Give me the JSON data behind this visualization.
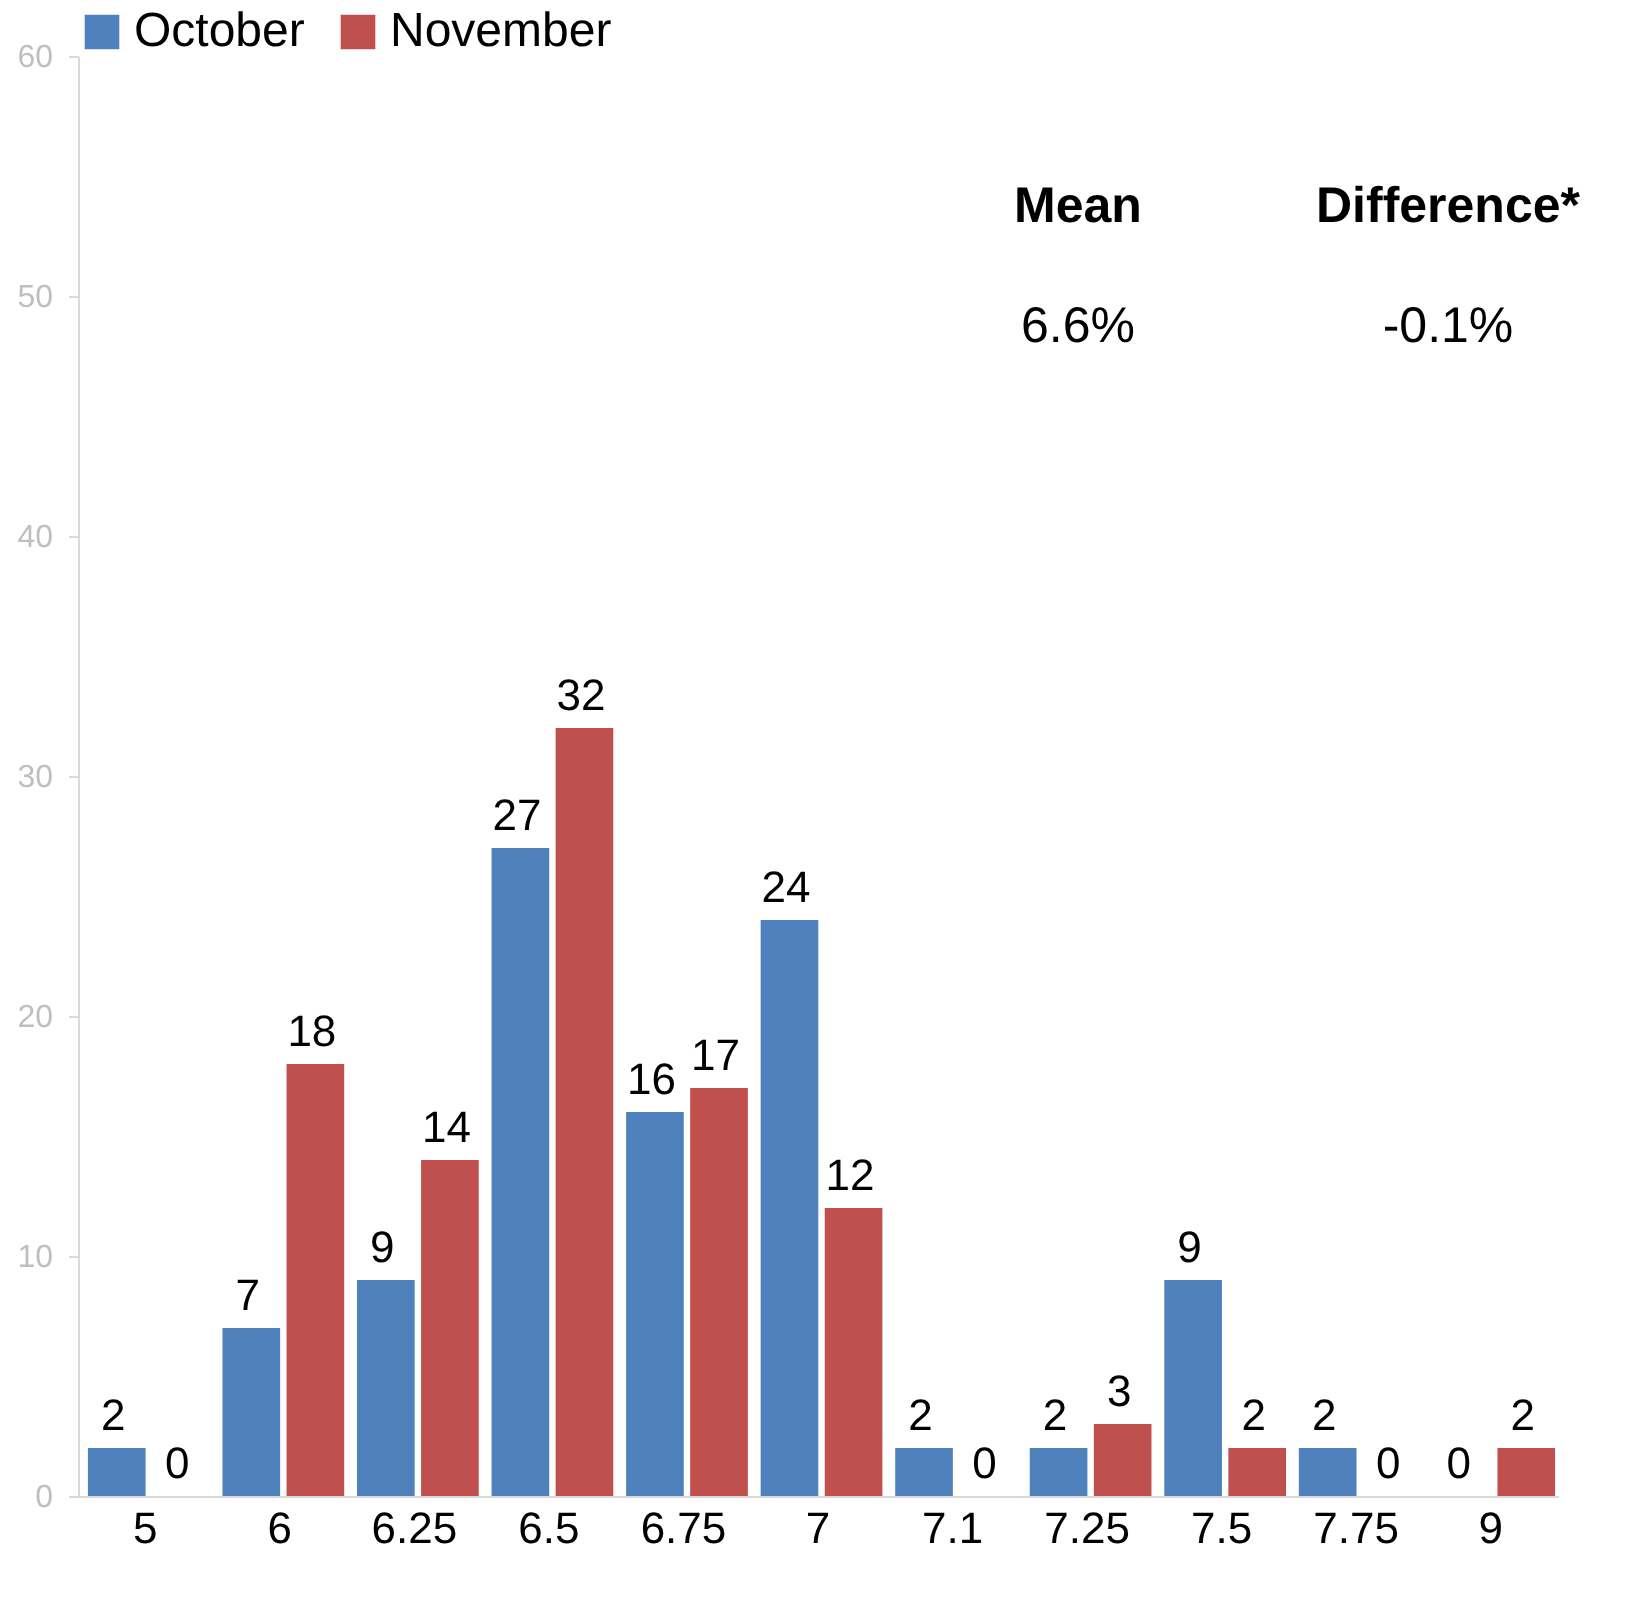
{
  "chart_data": {
    "type": "bar",
    "categories": [
      "5",
      "6",
      "6.25",
      "6.5",
      "6.75",
      "7",
      "7.1",
      "7.25",
      "7.5",
      "7.75",
      "9"
    ],
    "series": [
      {
        "name": "October",
        "color": "#4f81bd",
        "values": [
          2,
          7,
          9,
          27,
          16,
          24,
          2,
          2,
          9,
          2,
          0
        ]
      },
      {
        "name": "November",
        "color": "#c0504d",
        "values": [
          0,
          18,
          14,
          32,
          17,
          12,
          0,
          3,
          2,
          0,
          2
        ]
      }
    ],
    "ylim": [
      0,
      60
    ],
    "yticks": [
      0,
      10,
      20,
      30,
      40,
      50,
      60
    ],
    "grid": false,
    "legend": "top",
    "data_labels": true,
    "annotations": [
      "Mean",
      "Difference*",
      "6.6%",
      "-0.1%"
    ]
  }
}
